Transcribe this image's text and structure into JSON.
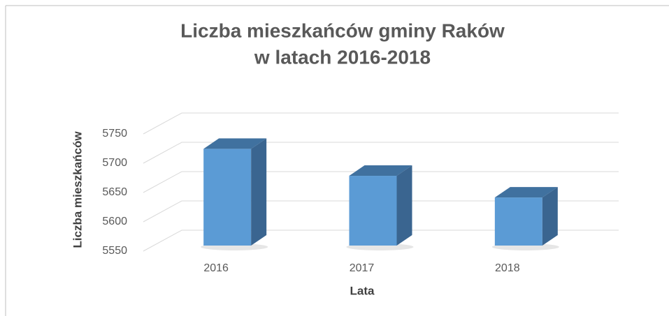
{
  "chart_data": {
    "type": "bar3d",
    "title": [
      "Liczba  mieszkańców gminy Raków",
      "w latach 2016-2018"
    ],
    "x_label": "Lata",
    "y_label": "Liczba mieszkańców",
    "categories": [
      "2016",
      "2017",
      "2018"
    ],
    "values": [
      5715,
      5669,
      5632
    ],
    "color": "#5b9bd5",
    "ylim": [
      5550,
      5750
    ],
    "yticks": [
      5550,
      5600,
      5650,
      5700,
      5750
    ],
    "grid": true
  }
}
